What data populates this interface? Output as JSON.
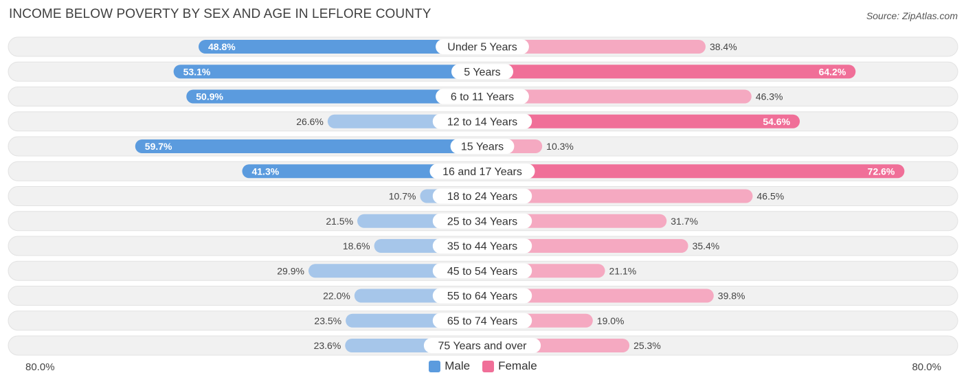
{
  "chart_data": {
    "type": "bar",
    "orientation": "horizontal-diverging",
    "title": "INCOME BELOW POVERTY BY SEX AND AGE IN LEFLORE COUNTY",
    "source": "Source: ZipAtlas.com",
    "categories": [
      "Under 5 Years",
      "5 Years",
      "6 to 11 Years",
      "12 to 14 Years",
      "15 Years",
      "16 and 17 Years",
      "18 to 24 Years",
      "25 to 34 Years",
      "35 to 44 Years",
      "45 to 54 Years",
      "55 to 64 Years",
      "65 to 74 Years",
      "75 Years and over"
    ],
    "series": [
      {
        "name": "Male",
        "values": [
          48.8,
          53.1,
          50.9,
          26.6,
          59.7,
          41.3,
          10.7,
          21.5,
          18.6,
          29.9,
          22.0,
          23.5,
          23.6
        ],
        "labels": [
          "48.8%",
          "53.1%",
          "50.9%",
          "26.6%",
          "59.7%",
          "41.3%",
          "10.7%",
          "21.5%",
          "18.6%",
          "29.9%",
          "22.0%",
          "23.5%",
          "23.6%"
        ]
      },
      {
        "name": "Female",
        "values": [
          38.4,
          64.2,
          46.3,
          54.6,
          10.3,
          72.6,
          46.5,
          31.7,
          35.4,
          21.1,
          39.8,
          19.0,
          25.3
        ],
        "labels": [
          "38.4%",
          "64.2%",
          "46.3%",
          "54.6%",
          "10.3%",
          "72.6%",
          "46.5%",
          "31.7%",
          "35.4%",
          "21.1%",
          "39.8%",
          "19.0%",
          "25.3%"
        ]
      }
    ],
    "xlim": [
      0,
      80
    ],
    "axis_left_label": "80.0%",
    "axis_right_label": "80.0%",
    "legend_position": "bottom-center",
    "colors": {
      "male_strong": "#5b9bde",
      "male_light": "#a6c6ea",
      "female_strong": "#f06f98",
      "female_light": "#f5a9c1",
      "track": "#f1f1f1",
      "track_border": "#e2e2e2"
    }
  }
}
